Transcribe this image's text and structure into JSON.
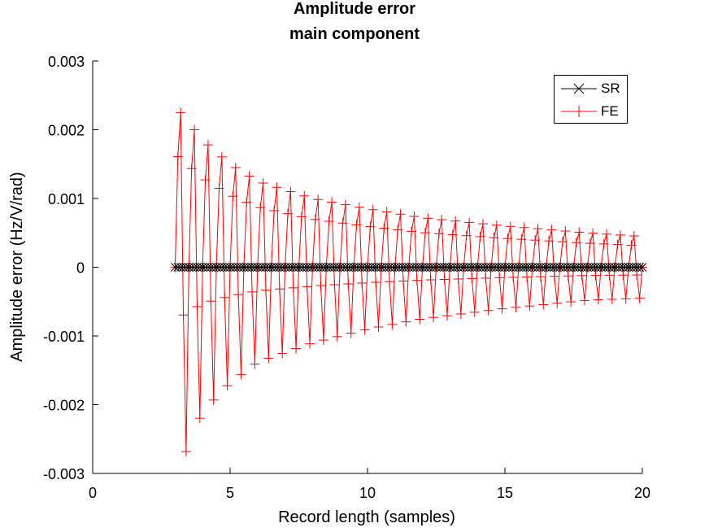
{
  "chart_data": {
    "type": "line",
    "title": "Amplitude error",
    "subtitle": "main component",
    "xlabel": "Record length (samples)",
    "ylabel": "Amplitude error (Hz/V/rad)",
    "xlim": [
      0,
      20
    ],
    "ylim": [
      -0.003,
      0.003
    ],
    "xticks": [
      "0",
      "5",
      "10",
      "15",
      "20"
    ],
    "yticks": [
      "-0.003",
      "-0.002",
      "-0.001",
      "0",
      "0.001",
      "0.002",
      "0.003"
    ],
    "grid": false,
    "legend_position": "top-right",
    "x_sampling": {
      "start": 3.0,
      "end": 20.0,
      "step": 0.1
    },
    "series": [
      {
        "name": "SR",
        "color": "#000000",
        "marker": "x",
        "description_values": "all zero",
        "values_rule": {
          "constant": 0
        }
      },
      {
        "name": "FE",
        "color": "#ff0000",
        "marker": "+",
        "values_rule": {
          "oscillation_period_samples": 0.5,
          "upper_envelope": [
            [
              3.1,
              0.0023
            ],
            [
              4.0,
              0.00185
            ],
            [
              5.0,
              0.0015
            ],
            [
              6.0,
              0.00125
            ],
            [
              8.0,
              0.001
            ],
            [
              10.0,
              0.00085
            ],
            [
              12.0,
              0.00072
            ],
            [
              15.0,
              0.0006
            ],
            [
              18.0,
              0.0005
            ],
            [
              19.9,
              0.00045
            ]
          ],
          "lower_envelope": [
            [
              3.3,
              -0.00278
            ],
            [
              4.0,
              -0.0021
            ],
            [
              5.0,
              -0.00168
            ],
            [
              6.0,
              -0.00138
            ],
            [
              8.0,
              -0.0011
            ],
            [
              10.0,
              -0.0009
            ],
            [
              12.0,
              -0.00075
            ],
            [
              15.0,
              -0.0006
            ],
            [
              18.0,
              -0.00048
            ],
            [
              20.0,
              -0.00045
            ]
          ]
        }
      }
    ]
  }
}
